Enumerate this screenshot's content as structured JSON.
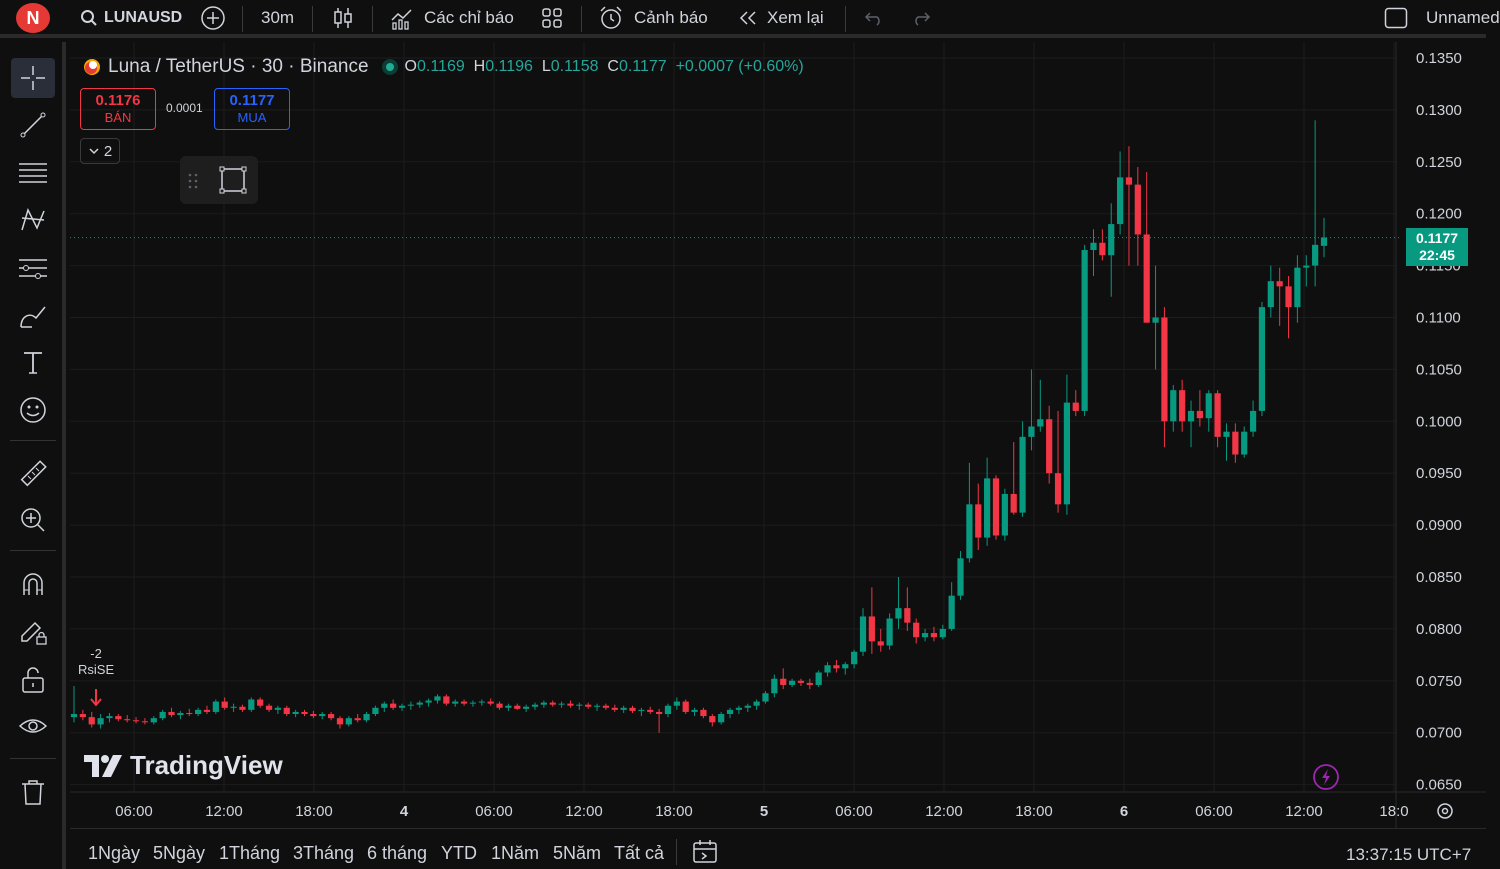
{
  "topbar": {
    "avatar_letter": "N",
    "symbol": "LUNAUSD",
    "interval": "30m",
    "indicators_label": "Các chỉ báo",
    "alerts_label": "Cảnh báo",
    "replay_label": "Xem lại",
    "layout_name": "Unnamed"
  },
  "legend": {
    "title": "Luna / TetherUS · 30 · Binance",
    "o_label": "O",
    "o_value": "0.1169",
    "h_label": "H",
    "h_value": "0.1196",
    "l_label": "L",
    "l_value": "0.1158",
    "c_label": "C",
    "c_value": "0.1177",
    "change": "+0.0007 (+0.60%)"
  },
  "trade": {
    "sell_price": "0.1176",
    "sell_label": "BÁN",
    "spread": "0.0001",
    "buy_price": "0.1177",
    "buy_label": "MUA",
    "collapse_count": "2"
  },
  "chart_data": {
    "type": "candlestick",
    "price_ticks": [
      "0.1350",
      "0.1300",
      "0.1250",
      "0.1200",
      "0.1150",
      "0.1100",
      "0.1050",
      "0.1000",
      "0.0950",
      "0.0900",
      "0.0850",
      "0.0800",
      "0.0750",
      "0.0700",
      "0.0650"
    ],
    "time_ticks": [
      "06:00",
      "12:00",
      "18:00",
      "4",
      "06:00",
      "12:00",
      "18:00",
      "5",
      "06:00",
      "12:00",
      "18:00",
      "6",
      "06:00",
      "12:00",
      "18:0"
    ],
    "ylim": [
      0.065,
      0.135
    ],
    "current_price": "0.1177",
    "countdown": "22:45",
    "marker_value": "-2",
    "marker_label": "RsiSE",
    "colors": {
      "up": "#089981",
      "down": "#f23645"
    },
    "candles": [
      [
        0.0715,
        0.0745,
        0.071,
        0.0718
      ],
      [
        0.0718,
        0.0722,
        0.0712,
        0.0715
      ],
      [
        0.0715,
        0.072,
        0.0705,
        0.0708
      ],
      [
        0.0708,
        0.0718,
        0.0704,
        0.0714
      ],
      [
        0.0714,
        0.0719,
        0.071,
        0.0716
      ],
      [
        0.0716,
        0.0718,
        0.0711,
        0.0713
      ],
      [
        0.0713,
        0.0717,
        0.071,
        0.0712
      ],
      [
        0.0712,
        0.0715,
        0.0709,
        0.0711
      ],
      [
        0.0711,
        0.0714,
        0.0708,
        0.071
      ],
      [
        0.071,
        0.0716,
        0.0708,
        0.0714
      ],
      [
        0.0714,
        0.0722,
        0.0712,
        0.072
      ],
      [
        0.072,
        0.0724,
        0.0715,
        0.0717
      ],
      [
        0.0717,
        0.0721,
        0.0713,
        0.0719
      ],
      [
        0.0719,
        0.0723,
        0.0716,
        0.0718
      ],
      [
        0.0718,
        0.0724,
        0.0716,
        0.0722
      ],
      [
        0.0722,
        0.0726,
        0.0718,
        0.072
      ],
      [
        0.072,
        0.0732,
        0.0718,
        0.073
      ],
      [
        0.073,
        0.0734,
        0.0722,
        0.0724
      ],
      [
        0.0724,
        0.0728,
        0.072,
        0.0725
      ],
      [
        0.0725,
        0.0727,
        0.072,
        0.0722
      ],
      [
        0.0722,
        0.0734,
        0.072,
        0.0732
      ],
      [
        0.0732,
        0.0734,
        0.0724,
        0.0726
      ],
      [
        0.0726,
        0.0728,
        0.072,
        0.0722
      ],
      [
        0.0722,
        0.0726,
        0.0718,
        0.0724
      ],
      [
        0.0724,
        0.0726,
        0.0716,
        0.0718
      ],
      [
        0.0718,
        0.0722,
        0.0715,
        0.072
      ],
      [
        0.072,
        0.0722,
        0.0716,
        0.0718
      ],
      [
        0.0718,
        0.0721,
        0.0714,
        0.0716
      ],
      [
        0.0716,
        0.072,
        0.0713,
        0.0718
      ],
      [
        0.0718,
        0.072,
        0.0712,
        0.0714
      ],
      [
        0.0714,
        0.0716,
        0.0704,
        0.0708
      ],
      [
        0.0708,
        0.0716,
        0.0706,
        0.0714
      ],
      [
        0.0714,
        0.0718,
        0.071,
        0.0712
      ],
      [
        0.0712,
        0.072,
        0.071,
        0.0718
      ],
      [
        0.0718,
        0.0726,
        0.0716,
        0.0724
      ],
      [
        0.0724,
        0.073,
        0.072,
        0.0728
      ],
      [
        0.0728,
        0.0732,
        0.0722,
        0.0724
      ],
      [
        0.0724,
        0.0728,
        0.0721,
        0.0726
      ],
      [
        0.0726,
        0.073,
        0.0722,
        0.0727
      ],
      [
        0.0727,
        0.0731,
        0.0724,
        0.0729
      ],
      [
        0.0729,
        0.0733,
        0.0725,
        0.0731
      ],
      [
        0.0731,
        0.0737,
        0.0728,
        0.0735
      ],
      [
        0.0735,
        0.0737,
        0.0726,
        0.0728
      ],
      [
        0.0728,
        0.0732,
        0.0725,
        0.073
      ],
      [
        0.073,
        0.0732,
        0.0726,
        0.0728
      ],
      [
        0.0728,
        0.0731,
        0.0725,
        0.0729
      ],
      [
        0.0729,
        0.0732,
        0.0726,
        0.073
      ],
      [
        0.073,
        0.0733,
        0.0726,
        0.0728
      ],
      [
        0.0728,
        0.073,
        0.0722,
        0.0724
      ],
      [
        0.0724,
        0.0728,
        0.0721,
        0.0726
      ],
      [
        0.0726,
        0.0728,
        0.0722,
        0.0723
      ],
      [
        0.0723,
        0.0727,
        0.072,
        0.0725
      ],
      [
        0.0725,
        0.0729,
        0.0722,
        0.0727
      ],
      [
        0.0727,
        0.0731,
        0.0724,
        0.0729
      ],
      [
        0.0729,
        0.0731,
        0.0725,
        0.0727
      ],
      [
        0.0727,
        0.073,
        0.0724,
        0.0728
      ],
      [
        0.0728,
        0.0731,
        0.0724,
        0.0726
      ],
      [
        0.0726,
        0.0729,
        0.0722,
        0.0727
      ],
      [
        0.0727,
        0.0729,
        0.0723,
        0.0725
      ],
      [
        0.0725,
        0.0728,
        0.0721,
        0.0726
      ],
      [
        0.0726,
        0.0728,
        0.0722,
        0.0724
      ],
      [
        0.0724,
        0.0727,
        0.072,
        0.0722
      ],
      [
        0.0722,
        0.0726,
        0.0719,
        0.0724
      ],
      [
        0.0724,
        0.0726,
        0.0719,
        0.0721
      ],
      [
        0.0721,
        0.0724,
        0.0716,
        0.0722
      ],
      [
        0.0722,
        0.0725,
        0.0718,
        0.072
      ],
      [
        0.072,
        0.0723,
        0.07,
        0.0718
      ],
      [
        0.0718,
        0.0728,
        0.0715,
        0.0726
      ],
      [
        0.0726,
        0.0734,
        0.0722,
        0.073
      ],
      [
        0.073,
        0.0732,
        0.0718,
        0.072
      ],
      [
        0.072,
        0.0724,
        0.0716,
        0.0722
      ],
      [
        0.0722,
        0.0724,
        0.0714,
        0.0716
      ],
      [
        0.0716,
        0.0718,
        0.0706,
        0.071
      ],
      [
        0.071,
        0.072,
        0.0708,
        0.0718
      ],
      [
        0.0718,
        0.0724,
        0.0714,
        0.0722
      ],
      [
        0.0722,
        0.0726,
        0.0718,
        0.0724
      ],
      [
        0.0724,
        0.0728,
        0.072,
        0.0726
      ],
      [
        0.0726,
        0.0732,
        0.0722,
        0.073
      ],
      [
        0.073,
        0.074,
        0.0728,
        0.0738
      ],
      [
        0.0738,
        0.0756,
        0.0734,
        0.0752
      ],
      [
        0.0752,
        0.0762,
        0.0742,
        0.0746
      ],
      [
        0.0746,
        0.0752,
        0.0744,
        0.075
      ],
      [
        0.075,
        0.0752,
        0.0745,
        0.0748
      ],
      [
        0.0748,
        0.0752,
        0.0742,
        0.0746
      ],
      [
        0.0746,
        0.076,
        0.0744,
        0.0758
      ],
      [
        0.0758,
        0.0768,
        0.0754,
        0.0765
      ],
      [
        0.0765,
        0.077,
        0.0758,
        0.0762
      ],
      [
        0.0762,
        0.0768,
        0.0756,
        0.0766
      ],
      [
        0.0766,
        0.078,
        0.0762,
        0.0778
      ],
      [
        0.0778,
        0.082,
        0.0774,
        0.0812
      ],
      [
        0.0812,
        0.084,
        0.0776,
        0.0788
      ],
      [
        0.0788,
        0.08,
        0.0778,
        0.0784
      ],
      [
        0.0784,
        0.0815,
        0.078,
        0.081
      ],
      [
        0.081,
        0.085,
        0.08,
        0.082
      ],
      [
        0.082,
        0.084,
        0.0798,
        0.0806
      ],
      [
        0.0806,
        0.081,
        0.0786,
        0.0792
      ],
      [
        0.0792,
        0.08,
        0.0788,
        0.0796
      ],
      [
        0.0796,
        0.0802,
        0.0788,
        0.0792
      ],
      [
        0.0792,
        0.0804,
        0.079,
        0.08
      ],
      [
        0.08,
        0.0845,
        0.0798,
        0.0832
      ],
      [
        0.0832,
        0.0875,
        0.0828,
        0.0868
      ],
      [
        0.0868,
        0.096,
        0.0864,
        0.092
      ],
      [
        0.092,
        0.094,
        0.0876,
        0.0888
      ],
      [
        0.0888,
        0.0965,
        0.088,
        0.0945
      ],
      [
        0.0945,
        0.0948,
        0.0886,
        0.089
      ],
      [
        0.089,
        0.0935,
        0.0885,
        0.093
      ],
      [
        0.093,
        0.098,
        0.091,
        0.0912
      ],
      [
        0.0912,
        0.1,
        0.0908,
        0.0985
      ],
      [
        0.0985,
        0.105,
        0.0972,
        0.0995
      ],
      [
        0.0995,
        0.104,
        0.099,
        0.1002
      ],
      [
        0.1002,
        0.1015,
        0.094,
        0.095
      ],
      [
        0.095,
        0.101,
        0.0912,
        0.092
      ],
      [
        0.092,
        0.1045,
        0.091,
        0.1018
      ],
      [
        0.1018,
        0.103,
        0.1005,
        0.101
      ],
      [
        0.101,
        0.117,
        0.1005,
        0.1165
      ],
      [
        0.1165,
        0.1185,
        0.114,
        0.1172
      ],
      [
        0.1172,
        0.1185,
        0.1155,
        0.116
      ],
      [
        0.116,
        0.121,
        0.112,
        0.119
      ],
      [
        0.119,
        0.126,
        0.118,
        0.1235
      ],
      [
        0.1235,
        0.1265,
        0.115,
        0.1228
      ],
      [
        0.1228,
        0.1245,
        0.115,
        0.118
      ],
      [
        0.118,
        0.124,
        0.1095,
        0.1095
      ],
      [
        0.1095,
        0.115,
        0.105,
        0.11
      ],
      [
        0.11,
        0.111,
        0.0975,
        0.1
      ],
      [
        0.1,
        0.1035,
        0.099,
        0.103
      ],
      [
        0.103,
        0.104,
        0.099,
        0.1
      ],
      [
        0.1,
        0.102,
        0.0975,
        0.101
      ],
      [
        0.101,
        0.103,
        0.0995,
        0.1003
      ],
      [
        0.1003,
        0.103,
        0.099,
        0.1027
      ],
      [
        0.1027,
        0.103,
        0.0975,
        0.0985
      ],
      [
        0.0985,
        0.0998,
        0.0962,
        0.099
      ],
      [
        0.099,
        0.0998,
        0.096,
        0.0968
      ],
      [
        0.0968,
        0.0995,
        0.0965,
        0.099
      ],
      [
        0.099,
        0.102,
        0.0985,
        0.101
      ],
      [
        0.101,
        0.1115,
        0.1005,
        0.111
      ],
      [
        0.111,
        0.115,
        0.11,
        0.1135
      ],
      [
        0.1135,
        0.1148,
        0.1092,
        0.113
      ],
      [
        0.113,
        0.114,
        0.108,
        0.111
      ],
      [
        0.111,
        0.116,
        0.1095,
        0.1148
      ],
      [
        0.1148,
        0.116,
        0.113,
        0.115
      ],
      [
        0.115,
        0.129,
        0.113,
        0.117
      ],
      [
        0.1169,
        0.1196,
        0.1158,
        0.1177
      ]
    ]
  },
  "bottombar": {
    "ranges": [
      "1Ngày",
      "5Ngày",
      "1Tháng",
      "3Tháng",
      "6 tháng",
      "YTD",
      "1Năm",
      "5Năm",
      "Tất cả"
    ],
    "clock": "13:37:15 UTC+7"
  },
  "logo_text": "TradingView"
}
